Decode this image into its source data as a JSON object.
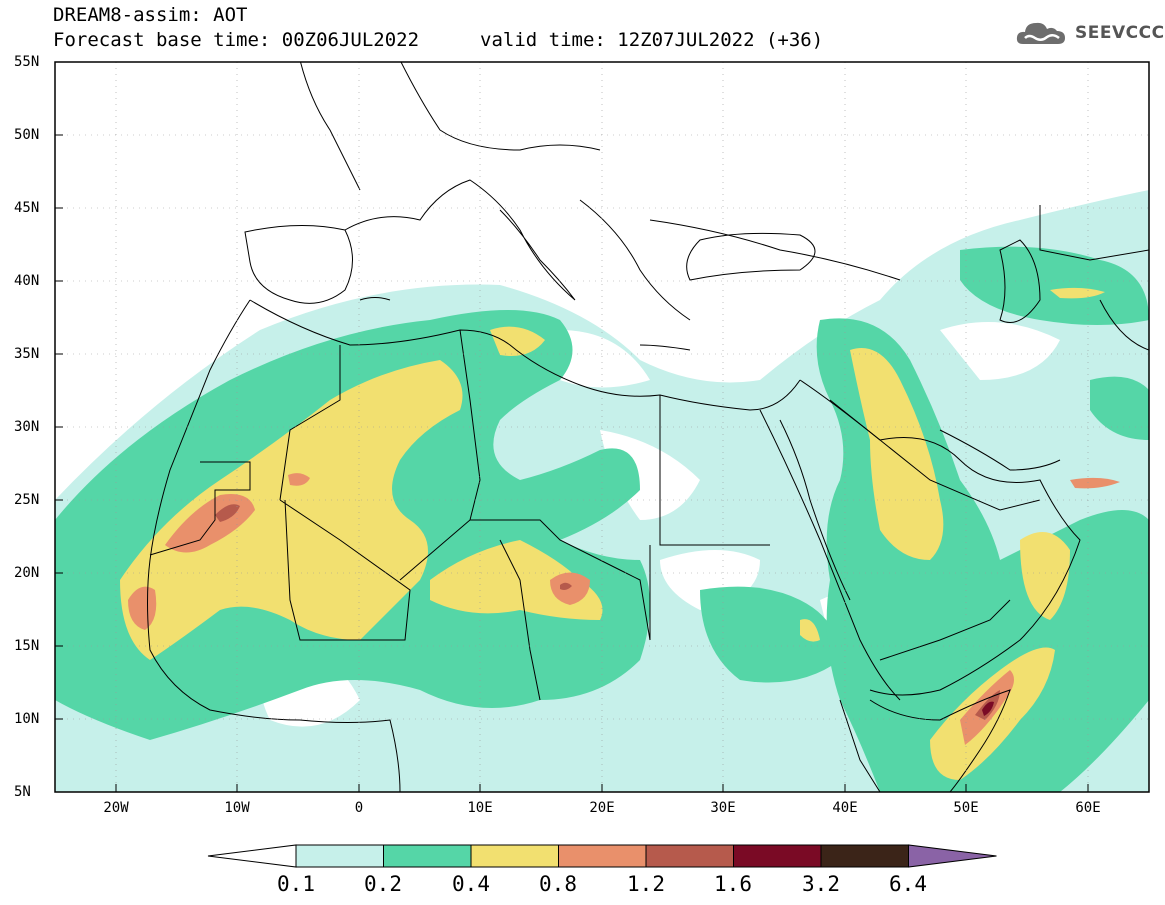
{
  "header": {
    "title": "DREAM8-assim: AOT",
    "base_time": "Forecast base time: 00Z06JUL2022",
    "valid_time": "valid time: 12Z07JUL2022 (+36)"
  },
  "logo": {
    "text": "SEEVCCC",
    "icon": "cloud-icon"
  },
  "map": {
    "lat_labels": [
      "55N",
      "50N",
      "45N",
      "40N",
      "35N",
      "30N",
      "25N",
      "20N",
      "15N",
      "10N",
      "5N"
    ],
    "lon_labels": [
      "20W",
      "10W",
      "0",
      "10E",
      "20E",
      "30E",
      "40E",
      "50E",
      "60E"
    ]
  },
  "colorbar": {
    "labels": [
      "0.1",
      "0.2",
      "0.4",
      "0.8",
      "1.2",
      "1.6",
      "3.2",
      "6.4"
    ],
    "colors": [
      "#c6f0ea",
      "#55d6a7",
      "#f2e070",
      "#e9906b",
      "#b65a4c",
      "#7a0a25",
      "#3b2418",
      "#8a63a6"
    ],
    "under_color": "#ffffff"
  }
}
